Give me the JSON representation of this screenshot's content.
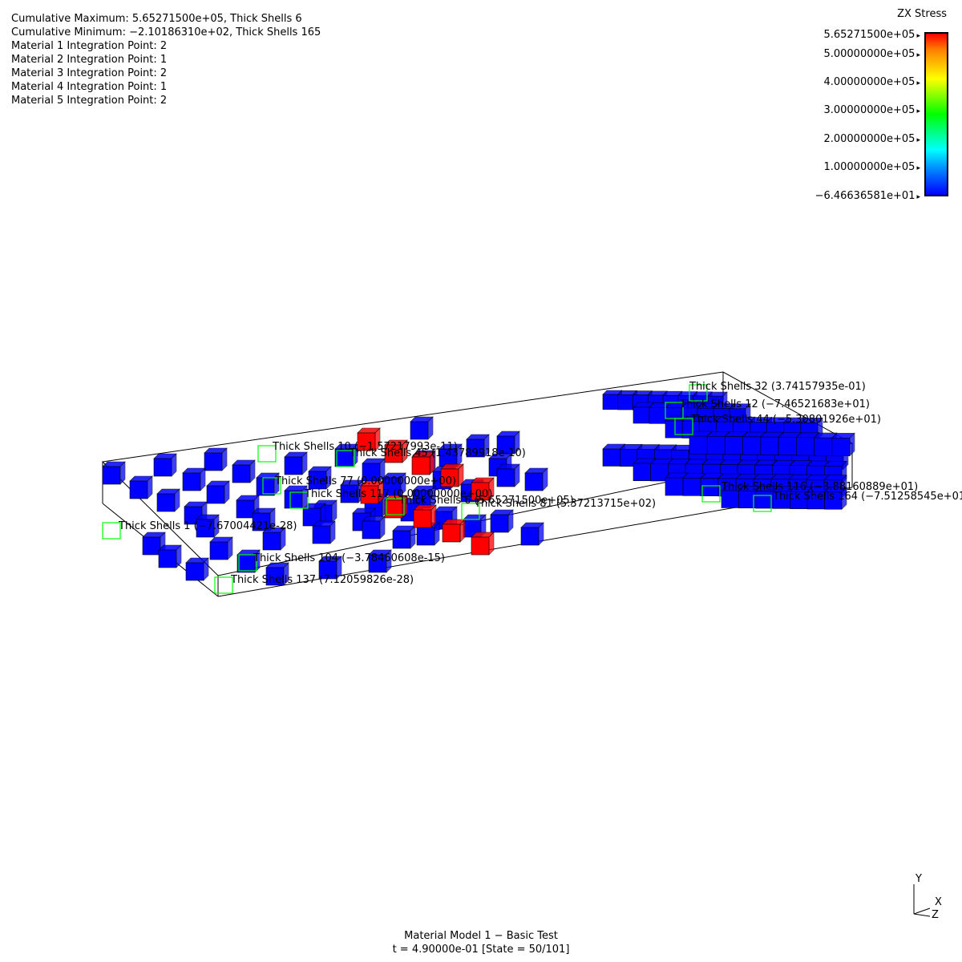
{
  "info": {
    "cum_max": "Cumulative Maximum: 5.65271500e+05, Thick Shells 6",
    "cum_min": "Cumulative Minimum: −2.10186310e+02, Thick Shells 165",
    "materials": [
      "Material 1 Integration Point: 2",
      "Material 2 Integration Point: 1",
      "Material 3 Integration Point: 2",
      "Material 4 Integration Point: 1",
      "Material 5 Integration Point: 2"
    ]
  },
  "legend": {
    "title": "ZX Stress",
    "ticks": [
      "5.65271500e+05",
      "5.00000000e+05",
      "4.00000000e+05",
      "3.00000000e+05",
      "2.00000000e+05",
      "1.00000000e+05",
      "−6.46636581e+01"
    ],
    "colors": {
      "max": "#ff0000",
      "mid": "#00ff00",
      "min": "#0000ff"
    }
  },
  "labels": [
    "Thick Shells 32 (3.74157935e-01)",
    "Thick Shells 12 (−7.46521683e+01)",
    "Thick Shells 44 (−5.30801926e+01)",
    "Thick Shells 10 (−1.57217993e-11)",
    "Thick Shells 45 (1.43789918e-10)",
    "Thick Shells 77 (0.00000000e+00)",
    "Thick Shells 117 (0.00000000e+00)",
    "Thick Shells 6 (5.65271500e+05)",
    "Thick Shells 81 (5.37213715e+02)",
    "Thick Shells 116 (−3.88160889e+01)",
    "Thick Shells 164 (−7.51258545e+01)",
    "Thick Shells 1 (−7.67004421e-28)",
    "Thick Shells 104 (−3.78460608e-15)",
    "Thick Shells 137 (7.12059826e-28)"
  ],
  "footer": {
    "title": "Material Model 1 − Basic Test",
    "state": "t = 4.90000e-01 [State = 50/101]"
  },
  "triad": {
    "y": "Y",
    "x": "X",
    "z": "Z"
  }
}
